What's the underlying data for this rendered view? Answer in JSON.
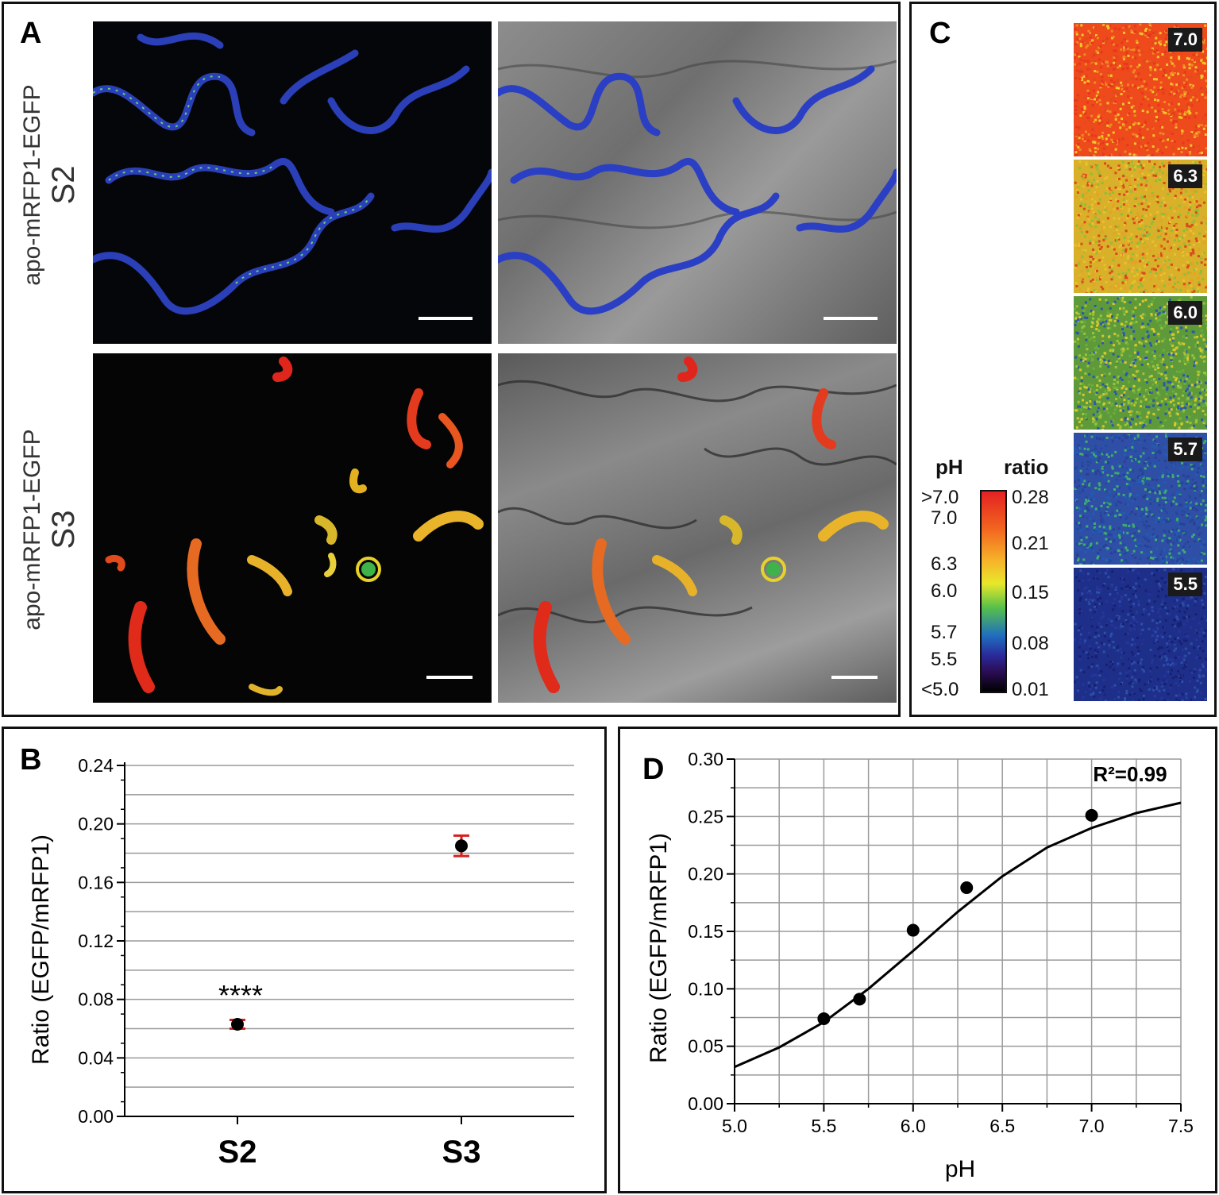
{
  "panel_a": {
    "label": "A",
    "rows": [
      {
        "construct": "apo-mRFP1-EGFP",
        "stage": "S2",
        "tone": "blue"
      },
      {
        "construct": "apo-mRFP1-EGFP",
        "stage": "S3",
        "tone": "warm"
      }
    ]
  },
  "panel_b": {
    "label": "B"
  },
  "panel_c": {
    "label": "C",
    "legend_ph_header": "pH",
    "legend_ratio_header": "ratio",
    "ph_labels": [
      ">7.0",
      "7.0",
      "6.3",
      "6.0",
      "5.7",
      "5.5",
      "<5.0"
    ],
    "ratio_labels": [
      "0.28",
      "0.21",
      "0.15",
      "0.08",
      "0.01"
    ],
    "calibration": [
      {
        "ph": "7.0",
        "tone": "#ee4a1c"
      },
      {
        "ph": "6.3",
        "tone": "#d8b02a"
      },
      {
        "ph": "6.0",
        "tone": "#5f9a3a"
      },
      {
        "ph": "5.7",
        "tone": "#2f4fa6"
      },
      {
        "ph": "5.5",
        "tone": "#1e2f8a"
      }
    ]
  },
  "panel_d": {
    "label": "D"
  },
  "chart_data": [
    {
      "type": "scatter",
      "panel": "B",
      "categories": [
        "S2",
        "S3"
      ],
      "values": [
        0.063,
        0.185
      ],
      "errors": [
        0.003,
        0.007
      ],
      "ylabel": "Ratio (EGFP/mRFP1)",
      "ylim": [
        0,
        0.24
      ],
      "yticks": [
        "0.00",
        "0.04",
        "0.08",
        "0.12",
        "0.16",
        "0.20",
        "0.24"
      ],
      "annotation": "****",
      "grid": true
    },
    {
      "type": "scatter",
      "panel": "D",
      "x": [
        5.5,
        5.7,
        6.0,
        6.3,
        7.0
      ],
      "y": [
        0.074,
        0.091,
        0.151,
        0.188,
        0.251
      ],
      "fit_curve": {
        "x": [
          5.0,
          5.25,
          5.5,
          5.75,
          6.0,
          6.25,
          6.5,
          6.75,
          7.0,
          7.25,
          7.5
        ],
        "y": [
          0.032,
          0.049,
          0.071,
          0.1,
          0.133,
          0.167,
          0.198,
          0.223,
          0.24,
          0.253,
          0.262
        ]
      },
      "annotation": "R²=0.99",
      "xlabel": "pH",
      "ylabel": "Ratio (EGFP/mRFP1)",
      "xlim": [
        5.0,
        7.5
      ],
      "ylim": [
        0.0,
        0.3
      ],
      "xticks": [
        "5.0",
        "5.5",
        "6.0",
        "6.5",
        "7.0",
        "7.5"
      ],
      "yticks": [
        "0.00",
        "0.05",
        "0.10",
        "0.15",
        "0.20",
        "0.25",
        "0.30"
      ],
      "grid": true
    }
  ]
}
